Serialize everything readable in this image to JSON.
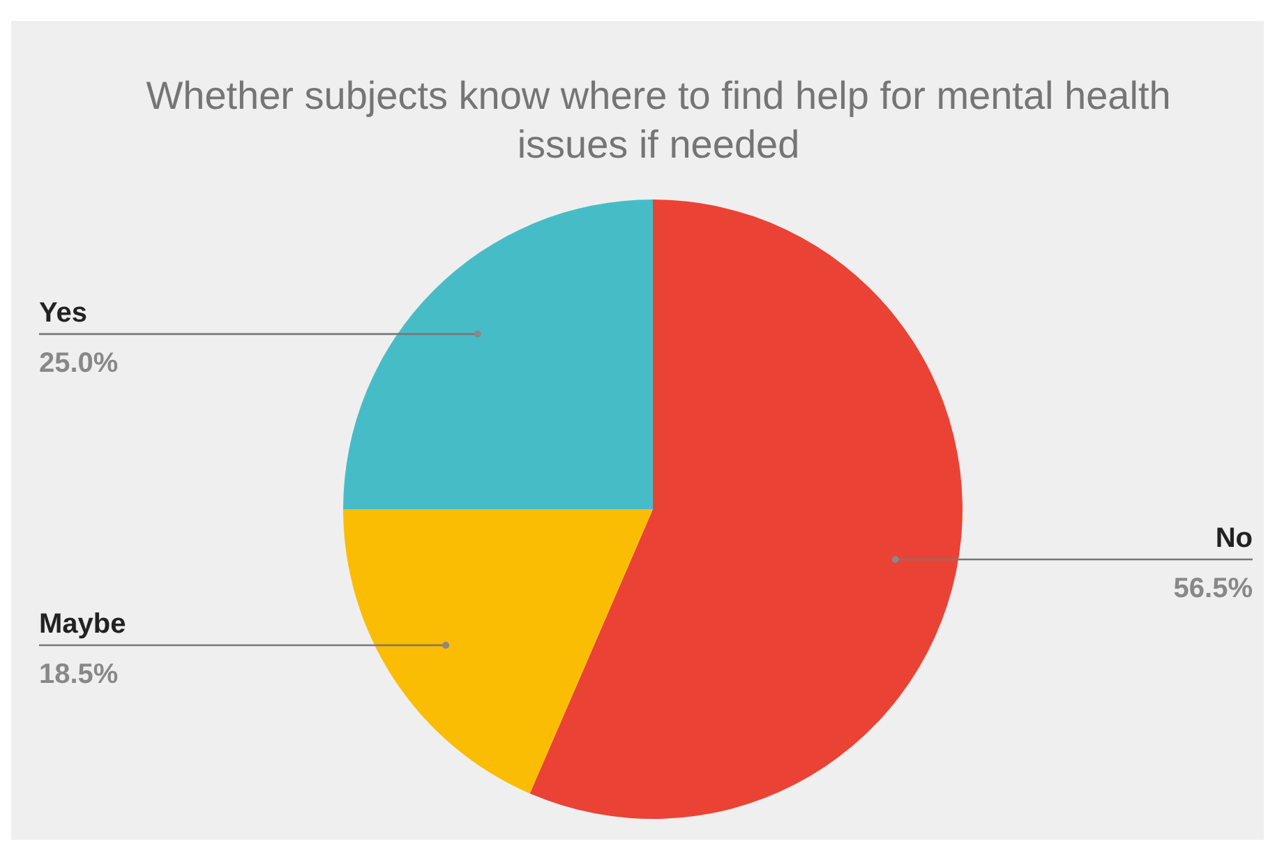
{
  "chart_data": {
    "type": "pie",
    "title": "Whether subjects know where to find help for mental health issues if needed",
    "categories": [
      "No",
      "Maybe",
      "Yes"
    ],
    "values": [
      56.5,
      18.5,
      25.0
    ],
    "colors": [
      "#ea4335",
      "#fbbc04",
      "#46bdc6"
    ],
    "value_labels": [
      "56.5%",
      "18.5%",
      "25.0%"
    ]
  }
}
